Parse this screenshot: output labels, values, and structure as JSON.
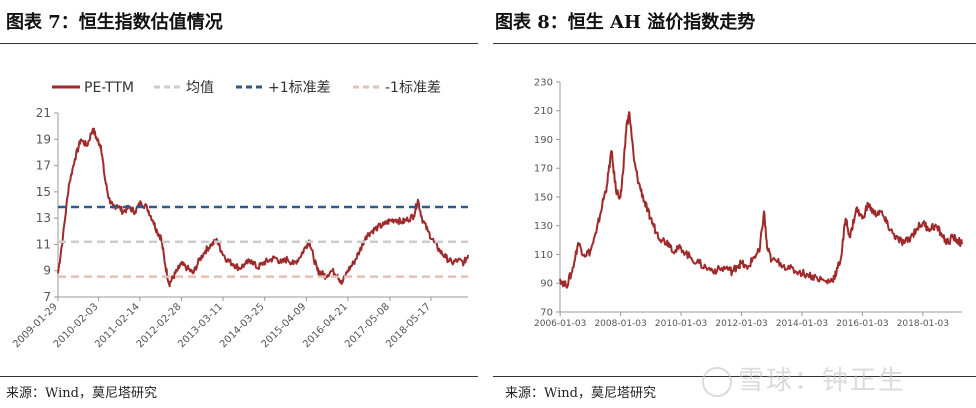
{
  "page": {
    "left_title": "图表 7：恒生指数估值情况",
    "right_title": "图表 8：恒生 AH 溢价指数走势",
    "left_source": "来源：Wind，莫尼塔研究",
    "right_source": "来源：Wind，莫尼塔研究",
    "watermark": "雪球：钟正生"
  },
  "chart_data": [
    {
      "type": "line",
      "title": "",
      "legend_position": "top",
      "ylim": [
        7,
        21
      ],
      "yticks": [
        7,
        9,
        11,
        13,
        15,
        17,
        19,
        21
      ],
      "xtick_labels": [
        "2009-01-29",
        "2010-02-03",
        "2011-02-14",
        "2012-02-28",
        "2013-03-11",
        "2014-03-25",
        "2015-04-09",
        "2016-04-21",
        "2017-05-08",
        "2018-05-17"
      ],
      "x_domain": [
        2009.08,
        2019.3
      ],
      "series": [
        {
          "name": "PE-TTM",
          "color": "#9e2a2b",
          "style": "solid",
          "x": [
            2009.08,
            2009.2,
            2009.35,
            2009.5,
            2009.65,
            2009.8,
            2009.95,
            2010.05,
            2010.15,
            2010.25,
            2010.35,
            2010.45,
            2010.55,
            2010.7,
            2010.85,
            2011.0,
            2011.15,
            2011.3,
            2011.45,
            2011.55,
            2011.65,
            2011.75,
            2011.85,
            2011.95,
            2012.05,
            2012.15,
            2012.3,
            2012.45,
            2012.6,
            2012.75,
            2012.9,
            2013.05,
            2013.15,
            2013.3,
            2013.45,
            2013.6,
            2013.75,
            2013.9,
            2014.05,
            2014.2,
            2014.35,
            2014.5,
            2014.65,
            2014.8,
            2014.95,
            2015.1,
            2015.25,
            2015.35,
            2015.45,
            2015.55,
            2015.65,
            2015.75,
            2015.9,
            2016.05,
            2016.15,
            2016.3,
            2016.45,
            2016.6,
            2016.75,
            2016.9,
            2017.05,
            2017.2,
            2017.35,
            2017.5,
            2017.65,
            2017.8,
            2017.95,
            2018.05,
            2018.15,
            2018.3,
            2018.45,
            2018.6,
            2018.75,
            2018.9,
            2019.05,
            2019.2,
            2019.3
          ],
          "values": [
            8.8,
            11.5,
            15.5,
            17.5,
            19.0,
            18.5,
            19.8,
            19.0,
            18.5,
            16.0,
            14.5,
            13.8,
            14.0,
            13.5,
            13.8,
            13.5,
            14.2,
            13.8,
            12.8,
            12.0,
            11.5,
            9.5,
            8.0,
            8.5,
            9.0,
            9.5,
            9.2,
            8.8,
            9.8,
            10.5,
            11.0,
            11.3,
            10.5,
            9.8,
            9.5,
            9.2,
            9.5,
            9.8,
            9.2,
            9.6,
            9.8,
            10.0,
            9.6,
            9.9,
            9.5,
            10.0,
            10.8,
            11.3,
            10.0,
            9.0,
            8.8,
            8.6,
            9.0,
            8.7,
            8.0,
            9.0,
            9.6,
            10.5,
            11.6,
            12.0,
            12.3,
            12.5,
            12.8,
            12.9,
            12.7,
            12.9,
            13.2,
            14.4,
            13.0,
            12.0,
            11.2,
            10.5,
            10.0,
            9.6,
            9.8,
            9.6,
            10.2
          ]
        },
        {
          "name": "均值",
          "color": "#cccccc",
          "style": "dashed",
          "value": 11.2
        },
        {
          "name": "+1标准差",
          "color": "#2e5a8a",
          "style": "dashed",
          "value": 13.85
        },
        {
          "name": "-1标准差",
          "color": "#e3c1b4",
          "style": "dashed",
          "value": 8.55
        }
      ]
    },
    {
      "type": "line",
      "title": "",
      "ylim": [
        70,
        230
      ],
      "yticks": [
        70,
        90,
        110,
        130,
        150,
        170,
        190,
        210,
        230
      ],
      "xtick_labels": [
        "2006-01-03",
        "2008-01-03",
        "2010-01-03",
        "2012-01-03",
        "2014-01-03",
        "2016-01-03",
        "2018-01-03"
      ],
      "x_domain": [
        2006.0,
        2019.3
      ],
      "series": [
        {
          "name": "",
          "color": "#9e2a2b",
          "style": "solid",
          "x": [
            2006.0,
            2006.2,
            2006.4,
            2006.6,
            2006.8,
            2007.0,
            2007.2,
            2007.4,
            2007.55,
            2007.7,
            2007.85,
            2008.0,
            2008.1,
            2008.2,
            2008.3,
            2008.45,
            2008.6,
            2008.75,
            2008.9,
            2009.0,
            2009.2,
            2009.4,
            2009.6,
            2009.8,
            2010.0,
            2010.3,
            2010.6,
            2010.9,
            2011.2,
            2011.5,
            2011.7,
            2011.85,
            2012.0,
            2012.2,
            2012.4,
            2012.6,
            2012.75,
            2012.85,
            2013.0,
            2013.3,
            2013.6,
            2013.9,
            2014.2,
            2014.5,
            2014.8,
            2015.0,
            2015.15,
            2015.3,
            2015.45,
            2015.6,
            2015.8,
            2016.0,
            2016.2,
            2016.4,
            2016.6,
            2016.8,
            2017.0,
            2017.2,
            2017.4,
            2017.6,
            2017.8,
            2018.0,
            2018.2,
            2018.4,
            2018.6,
            2018.8,
            2019.0,
            2019.15,
            2019.3
          ],
          "values": [
            93,
            88,
            98,
            118,
            110,
            112,
            125,
            145,
            158,
            182,
            155,
            150,
            170,
            200,
            208,
            175,
            160,
            150,
            140,
            135,
            125,
            120,
            118,
            112,
            115,
            108,
            104,
            100,
            99,
            101,
            98,
            102,
            104,
            100,
            108,
            112,
            140,
            115,
            106,
            104,
            100,
            98,
            96,
            94,
            91,
            92,
            98,
            108,
            135,
            122,
            142,
            135,
            145,
            138,
            140,
            132,
            125,
            120,
            118,
            122,
            128,
            132,
            128,
            130,
            125,
            118,
            122,
            120,
            117
          ]
        }
      ]
    }
  ]
}
